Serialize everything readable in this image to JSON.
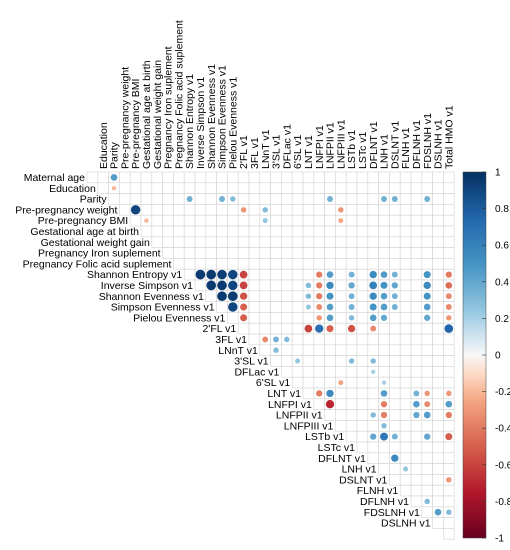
{
  "chart_data": {
    "type": "heatmap",
    "style": "upper-triangle correlation plot with circles",
    "variables": [
      "Maternal age",
      "Education",
      "Parity",
      "Pre-pregnancy weight",
      "Pre-pregnancy BMI",
      "Gestational age at birth",
      "Gestational weight gain",
      "Pregnancy Iron suplement",
      "Pregnancy Folic acid suplement",
      "Shannon Entropy v1",
      "Inverse Simpson v1",
      "Shannon Evenness v1",
      "Simpson Evenness v1",
      "Pielou Evenness v1",
      "2'FL v1",
      "3FL v1",
      "LNnT v1",
      "3'SL v1",
      "DFLac v1",
      "6'SL v1",
      "LNT v1",
      "LNFPI v1",
      "LNFPII v1",
      "LNFPIII v1",
      "LSTb v1",
      "LSTc v1",
      "DFLNT v1",
      "LNH v1",
      "DSLNT v1",
      "FLNH v1",
      "DFLNH v1",
      "FDSLNH v1",
      "DSLNH v1",
      "Total HMO v1"
    ],
    "correlations": [
      {
        "row": "Maternal age",
        "col": "Parity",
        "value": 0.45
      },
      {
        "row": "Education",
        "col": "Parity",
        "value": -0.2
      },
      {
        "row": "Parity",
        "col": "Shannon Entropy v1",
        "value": 0.35
      },
      {
        "row": "Parity",
        "col": "Simpson Evenness v1",
        "value": 0.35
      },
      {
        "row": "Parity",
        "col": "Pielou Evenness v1",
        "value": 0.3
      },
      {
        "row": "Parity",
        "col": "LNFPII v1",
        "value": 0.35
      },
      {
        "row": "Parity",
        "col": "LNH v1",
        "value": 0.35
      },
      {
        "row": "Parity",
        "col": "DSLNT v1",
        "value": 0.35
      },
      {
        "row": "Parity",
        "col": "FDSLNH v1",
        "value": 0.35
      },
      {
        "row": "Pre-pregnancy weight",
        "col": "Pre-pregnancy BMI",
        "value": 0.9
      },
      {
        "row": "Pre-pregnancy weight",
        "col": "2'FL v1",
        "value": -0.3
      },
      {
        "row": "Pre-pregnancy weight",
        "col": "LNnT v1",
        "value": 0.3
      },
      {
        "row": "Pre-pregnancy weight",
        "col": "LNFPIII v1",
        "value": -0.3
      },
      {
        "row": "Pre-pregnancy BMI",
        "col": "Gestational age at birth",
        "value": -0.2
      },
      {
        "row": "Pre-pregnancy BMI",
        "col": "LNnT v1",
        "value": 0.25
      },
      {
        "row": "Pre-pregnancy BMI",
        "col": "LNFPIII v1",
        "value": -0.25
      },
      {
        "row": "Shannon Entropy v1",
        "col": "Inverse Simpson v1",
        "value": 0.95
      },
      {
        "row": "Shannon Entropy v1",
        "col": "Shannon Evenness v1",
        "value": 0.95
      },
      {
        "row": "Shannon Entropy v1",
        "col": "Simpson Evenness v1",
        "value": 0.93
      },
      {
        "row": "Shannon Entropy v1",
        "col": "Pielou Evenness v1",
        "value": 0.9
      },
      {
        "row": "Shannon Entropy v1",
        "col": "2'FL v1",
        "value": -0.6
      },
      {
        "row": "Shannon Entropy v1",
        "col": "LNFPI v1",
        "value": -0.4
      },
      {
        "row": "Shannon Entropy v1",
        "col": "LNFPII v1",
        "value": 0.45
      },
      {
        "row": "Shannon Entropy v1",
        "col": "LSTb v1",
        "value": 0.35
      },
      {
        "row": "Shannon Entropy v1",
        "col": "DFLNT v1",
        "value": 0.55
      },
      {
        "row": "Shannon Entropy v1",
        "col": "LNH v1",
        "value": 0.45
      },
      {
        "row": "Shannon Entropy v1",
        "col": "DSLNT v1",
        "value": 0.35
      },
      {
        "row": "Shannon Entropy v1",
        "col": "FDSLNH v1",
        "value": 0.5
      },
      {
        "row": "Shannon Entropy v1",
        "col": "Total HMO v1",
        "value": -0.4
      },
      {
        "row": "Inverse Simpson v1",
        "col": "Shannon Evenness v1",
        "value": 0.95
      },
      {
        "row": "Inverse Simpson v1",
        "col": "Simpson Evenness v1",
        "value": 0.95
      },
      {
        "row": "Inverse Simpson v1",
        "col": "Pielou Evenness v1",
        "value": 0.9
      },
      {
        "row": "Inverse Simpson v1",
        "col": "2'FL v1",
        "value": -0.6
      },
      {
        "row": "Inverse Simpson v1",
        "col": "LNFPI v1",
        "value": -0.4
      },
      {
        "row": "Inverse Simpson v1",
        "col": "LNFPII v1",
        "value": 0.55
      },
      {
        "row": "Inverse Simpson v1",
        "col": "LNT v1",
        "value": 0.3
      },
      {
        "row": "Inverse Simpson v1",
        "col": "LSTb v1",
        "value": 0.4
      },
      {
        "row": "Inverse Simpson v1",
        "col": "DFLNT v1",
        "value": 0.6
      },
      {
        "row": "Inverse Simpson v1",
        "col": "LNH v1",
        "value": 0.5
      },
      {
        "row": "Inverse Simpson v1",
        "col": "DSLNT v1",
        "value": 0.4
      },
      {
        "row": "Inverse Simpson v1",
        "col": "FDSLNH v1",
        "value": 0.55
      },
      {
        "row": "Inverse Simpson v1",
        "col": "Total HMO v1",
        "value": -0.45
      },
      {
        "row": "Shannon Evenness v1",
        "col": "Simpson Evenness v1",
        "value": 0.95
      },
      {
        "row": "Shannon Evenness v1",
        "col": "Pielou Evenness v1",
        "value": 0.95
      },
      {
        "row": "Shannon Evenness v1",
        "col": "2'FL v1",
        "value": -0.55
      },
      {
        "row": "Shannon Evenness v1",
        "col": "LNFPI v1",
        "value": -0.4
      },
      {
        "row": "Shannon Evenness v1",
        "col": "LNFPII v1",
        "value": 0.5
      },
      {
        "row": "Shannon Evenness v1",
        "col": "LNT v1",
        "value": 0.3
      },
      {
        "row": "Shannon Evenness v1",
        "col": "LSTb v1",
        "value": 0.35
      },
      {
        "row": "Shannon Evenness v1",
        "col": "DFLNT v1",
        "value": 0.55
      },
      {
        "row": "Shannon Evenness v1",
        "col": "LNH v1",
        "value": 0.45
      },
      {
        "row": "Shannon Evenness v1",
        "col": "DSLNT v1",
        "value": 0.35
      },
      {
        "row": "Shannon Evenness v1",
        "col": "FDSLNH v1",
        "value": 0.5
      },
      {
        "row": "Shannon Evenness v1",
        "col": "Total HMO v1",
        "value": -0.35
      },
      {
        "row": "Simpson Evenness v1",
        "col": "Pielou Evenness v1",
        "value": 0.9
      },
      {
        "row": "Simpson Evenness v1",
        "col": "2'FL v1",
        "value": -0.5
      },
      {
        "row": "Simpson Evenness v1",
        "col": "LNFPI v1",
        "value": -0.35
      },
      {
        "row": "Simpson Evenness v1",
        "col": "LNFPII v1",
        "value": 0.45
      },
      {
        "row": "Simpson Evenness v1",
        "col": "LNT v1",
        "value": 0.25
      },
      {
        "row": "Simpson Evenness v1",
        "col": "LSTb v1",
        "value": 0.35
      },
      {
        "row": "Simpson Evenness v1",
        "col": "DFLNT v1",
        "value": 0.5
      },
      {
        "row": "Simpson Evenness v1",
        "col": "LNH v1",
        "value": 0.45
      },
      {
        "row": "Simpson Evenness v1",
        "col": "DSLNT v1",
        "value": 0.35
      },
      {
        "row": "Simpson Evenness v1",
        "col": "FDSLNH v1",
        "value": 0.45
      },
      {
        "row": "Simpson Evenness v1",
        "col": "Total HMO v1",
        "value": -0.35
      },
      {
        "row": "Pielou Evenness v1",
        "col": "2'FL v1",
        "value": -0.5
      },
      {
        "row": "Pielou Evenness v1",
        "col": "LNFPI v1",
        "value": -0.3
      },
      {
        "row": "Pielou Evenness v1",
        "col": "LNFPII v1",
        "value": 0.45
      },
      {
        "row": "Pielou Evenness v1",
        "col": "LSTb v1",
        "value": 0.3
      },
      {
        "row": "Pielou Evenness v1",
        "col": "DFLNT v1",
        "value": 0.45
      },
      {
        "row": "Pielou Evenness v1",
        "col": "LNH v1",
        "value": 0.4
      },
      {
        "row": "Pielou Evenness v1",
        "col": "FDSLNH v1",
        "value": 0.4
      },
      {
        "row": "Pielou Evenness v1",
        "col": "Total HMO v1",
        "value": -0.3
      },
      {
        "row": "2'FL v1",
        "col": "LNT v1",
        "value": -0.6
      },
      {
        "row": "2'FL v1",
        "col": "LNFPI v1",
        "value": 0.7
      },
      {
        "row": "2'FL v1",
        "col": "LNFPII v1",
        "value": -0.5
      },
      {
        "row": "2'FL v1",
        "col": "LSTb v1",
        "value": -0.55
      },
      {
        "row": "2'FL v1",
        "col": "DFLNT v1",
        "value": -0.35
      },
      {
        "row": "2'FL v1",
        "col": "Total HMO v1",
        "value": 0.75
      },
      {
        "row": "3FL v1",
        "col": "LNnT v1",
        "value": -0.35
      },
      {
        "row": "3FL v1",
        "col": "3'SL v1",
        "value": 0.35
      },
      {
        "row": "3FL v1",
        "col": "DFLac v1",
        "value": 0.3
      },
      {
        "row": "LNnT v1",
        "col": "3'SL v1",
        "value": 0.3
      },
      {
        "row": "3'SL v1",
        "col": "6'SL v1",
        "value": 0.25
      },
      {
        "row": "3'SL v1",
        "col": "LSTb v1",
        "value": 0.3
      },
      {
        "row": "3'SL v1",
        "col": "DFLNT v1",
        "value": 0.3
      },
      {
        "row": "DFLac v1",
        "col": "DFLNT v1",
        "value": 0.2
      },
      {
        "row": "6'SL v1",
        "col": "LNFPIII v1",
        "value": -0.25
      },
      {
        "row": "6'SL v1",
        "col": "LNH v1",
        "value": 0.2
      },
      {
        "row": "LNT v1",
        "col": "LNFPI v1",
        "value": -0.4
      },
      {
        "row": "LNT v1",
        "col": "LNFPII v1",
        "value": 0.55
      },
      {
        "row": "LNT v1",
        "col": "LNH v1",
        "value": 0.45
      },
      {
        "row": "LNT v1",
        "col": "DFLNH v1",
        "value": 0.35
      },
      {
        "row": "LNT v1",
        "col": "FDSLNH v1",
        "value": -0.3
      },
      {
        "row": "LNT v1",
        "col": "Total HMO v1",
        "value": -0.3
      },
      {
        "row": "LNFPI v1",
        "col": "LNFPII v1",
        "value": -0.7
      },
      {
        "row": "LNFPI v1",
        "col": "LNH v1",
        "value": -0.4
      },
      {
        "row": "LNFPI v1",
        "col": "DFLNH v1",
        "value": 0.45
      },
      {
        "row": "LNFPI v1",
        "col": "FDSLNH v1",
        "value": -0.35
      },
      {
        "row": "LNFPI v1",
        "col": "Total HMO v1",
        "value": 0.45
      },
      {
        "row": "LNFPII v1",
        "col": "DFLNT v1",
        "value": 0.3
      },
      {
        "row": "LNFPII v1",
        "col": "LNH v1",
        "value": -0.4
      },
      {
        "row": "LNFPII v1",
        "col": "DFLNH v1",
        "value": 0.4
      },
      {
        "row": "LNFPII v1",
        "col": "FDSLNH v1",
        "value": 0.45
      },
      {
        "row": "LNFPII v1",
        "col": "Total HMO v1",
        "value": -0.4
      },
      {
        "row": "LNFPIII v1",
        "col": "LNH v1",
        "value": 0.3
      },
      {
        "row": "LSTb v1",
        "col": "DFLNT v1",
        "value": 0.4
      },
      {
        "row": "LSTb v1",
        "col": "LNH v1",
        "value": 0.65
      },
      {
        "row": "LSTb v1",
        "col": "DSLNT v1",
        "value": 0.35
      },
      {
        "row": "LSTb v1",
        "col": "FDSLNH v1",
        "value": 0.4
      },
      {
        "row": "LSTb v1",
        "col": "Total HMO v1",
        "value": -0.5
      },
      {
        "row": "DFLNT v1",
        "col": "DSLNT v1",
        "value": 0.55
      },
      {
        "row": "LNH v1",
        "col": "FLNH v1",
        "value": 0.25
      },
      {
        "row": "DSLNT v1",
        "col": "Total HMO v1",
        "value": -0.3
      },
      {
        "row": "DFLNH v1",
        "col": "FDSLNH v1",
        "value": 0.3
      },
      {
        "row": "FDSLNH v1",
        "col": "DSLNH v1",
        "value": 0.45
      },
      {
        "row": "FDSLNH v1",
        "col": "Total HMO v1",
        "value": 0.3
      }
    ],
    "color_scale": {
      "min": -1,
      "max": 1,
      "ticks": [
        "1",
        "0.8",
        "0.6",
        "0.4",
        "0.2",
        "0",
        "-0.2",
        "-0.4",
        "-0.6",
        "-0.8",
        "-1"
      ],
      "stops": [
        {
          "value": -1,
          "color": "#67001f"
        },
        {
          "value": -0.75,
          "color": "#b2182b"
        },
        {
          "value": -0.5,
          "color": "#d6604d"
        },
        {
          "value": -0.25,
          "color": "#f4a582"
        },
        {
          "value": -0.1,
          "color": "#fddbc7"
        },
        {
          "value": 0,
          "color": "#f7f7f7"
        },
        {
          "value": 0.1,
          "color": "#d1e5f0"
        },
        {
          "value": 0.25,
          "color": "#92c5de"
        },
        {
          "value": 0.5,
          "color": "#4393c3"
        },
        {
          "value": 0.75,
          "color": "#2166ac"
        },
        {
          "value": 1,
          "color": "#053061"
        }
      ]
    },
    "grid_color": "#d3d3d3",
    "legend_position": "right"
  }
}
